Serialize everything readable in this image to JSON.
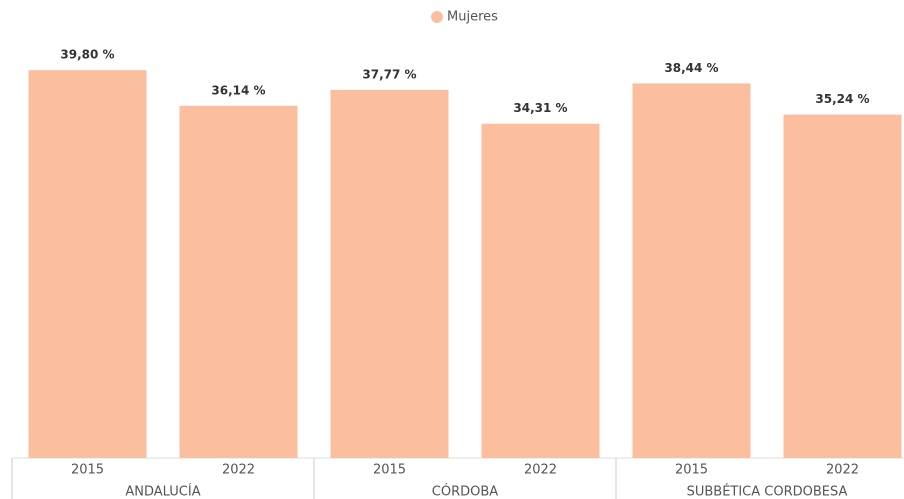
{
  "chart_data": {
    "type": "bar",
    "categories": [
      "2015",
      "2022",
      "2015",
      "2022",
      "2015",
      "2022"
    ],
    "groups": [
      "ANDALUCÍA",
      "CÓRDOBA",
      "SUBBÉTICA CORDOBESA"
    ],
    "series": [
      {
        "name": "Mujeres",
        "color": "#fbbf9f",
        "values": [
          39.8,
          36.14,
          37.77,
          34.31,
          38.44,
          35.24
        ],
        "value_labels": [
          "39,80 %",
          "36,14 %",
          "37,77 %",
          "34,31 %",
          "38,44 %",
          "35,24 %"
        ]
      }
    ],
    "ylim": [
      0,
      47
    ]
  }
}
